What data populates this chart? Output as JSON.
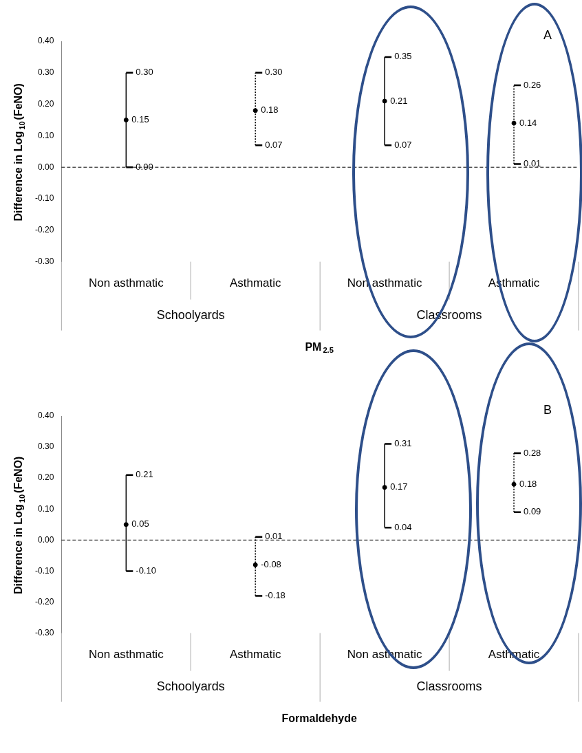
{
  "chart_data": [
    {
      "type": "scatter",
      "xlabel": "PM$_{2.5}$",
      "ylabel": "Difference in Log$_{10}$(FeNO)",
      "categories": [
        "Non asthmatic",
        "Asthmatic",
        "Non asthmatic",
        "Asthmatic"
      ],
      "series": [
        {
          "color": "#000000",
          "line_style": "solid",
          "values": [
            0.15,
            null,
            0.21,
            null
          ],
          "errors": [
            [
              0.0,
              0.3
            ],
            null,
            [
              0.07,
              0.35
            ],
            null
          ]
        },
        {
          "color": "#000000",
          "line_style": "dotted",
          "values": [
            null,
            0.18,
            null,
            0.14
          ],
          "errors": [
            null,
            [
              0.07,
              0.3
            ],
            null,
            [
              0.01,
              0.26
            ]
          ]
        }
      ],
      "ylim": [
        -0.3,
        0.4
      ],
      "yticks": [
        {
          "value": -0.3,
          "label": "-0.30"
        },
        {
          "value": -0.2,
          "label": "-0.20"
        },
        {
          "value": -0.1,
          "label": "-0.10"
        },
        {
          "value": 0,
          "label": "0.00"
        },
        {
          "value": 0.1,
          "label": "0.10"
        },
        {
          "value": 0.2,
          "label": "0.20"
        },
        {
          "value": 0.3,
          "label": "0.30"
        },
        {
          "value": 0.4,
          "label": "0.40"
        }
      ],
      "ref_lines": [
        {
          "axis": "y",
          "value": 0,
          "line_style": "dashed",
          "color": "#000000"
        }
      ],
      "annotations": [
        "Schoolyards",
        "Classrooms",
        "A",
        "0.00",
        "0.30",
        "0.07",
        "0.30",
        "0.07",
        "0.35",
        "0.01",
        "0.26"
      ],
      "data_labels": true,
      "marker": "circle",
      "grid": false,
      "legend": false
    },
    {
      "type": "scatter",
      "xlabel": "Formaldehyde",
      "ylabel": "Difference in Log$_{10}$(FeNO)",
      "categories": [
        "Non asthmatic",
        "Asthmatic",
        "Non asthmatic",
        "Asthmatic"
      ],
      "series": [
        {
          "color": "#000000",
          "line_style": "solid",
          "values": [
            0.05,
            null,
            0.17,
            null
          ],
          "errors": [
            [
              -0.1,
              0.21
            ],
            null,
            [
              0.04,
              0.31
            ],
            null
          ]
        },
        {
          "color": "#000000",
          "line_style": "dotted",
          "values": [
            null,
            -0.08,
            null,
            0.18
          ],
          "errors": [
            null,
            [
              -0.18,
              0.01
            ],
            null,
            [
              0.09,
              0.28
            ]
          ]
        }
      ],
      "ylim": [
        -0.3,
        0.4
      ],
      "yticks": [
        {
          "value": -0.3,
          "label": "-0.30"
        },
        {
          "value": -0.2,
          "label": "-0.20"
        },
        {
          "value": -0.1,
          "label": "-0.10"
        },
        {
          "value": 0,
          "label": "0.00"
        },
        {
          "value": 0.1,
          "label": "0.10"
        },
        {
          "value": 0.2,
          "label": "0.20"
        },
        {
          "value": 0.3,
          "label": "0.30"
        },
        {
          "value": 0.4,
          "label": "0.40"
        }
      ],
      "ref_lines": [
        {
          "axis": "y",
          "value": 0,
          "line_style": "dashed",
          "color": "#000000"
        }
      ],
      "annotations": [
        "Schoolyards",
        "Classrooms",
        "B",
        "-0.10",
        "0.21",
        "-0.18",
        "0.01",
        "0.04",
        "0.31",
        "0.09",
        "0.28"
      ],
      "data_labels": true,
      "marker": "circle",
      "grid": false,
      "legend": false
    }
  ]
}
